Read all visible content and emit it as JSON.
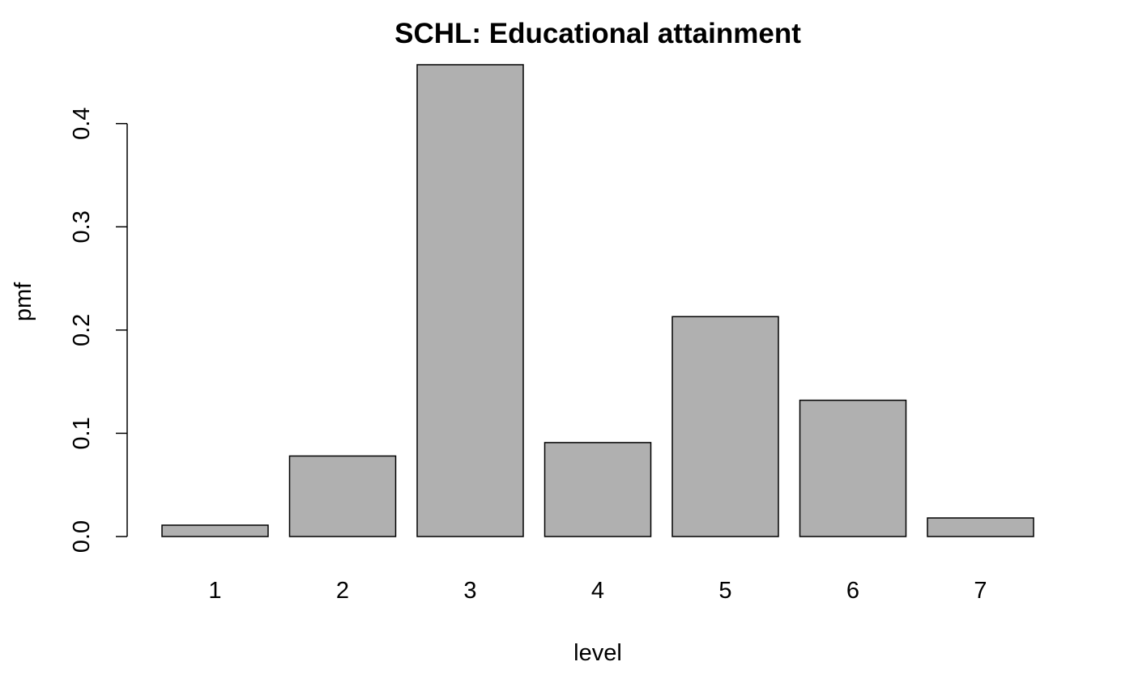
{
  "chart_data": {
    "type": "bar",
    "title": "SCHL: Educational attainment",
    "xlabel": "level",
    "ylabel": "pmf",
    "categories": [
      "1",
      "2",
      "3",
      "4",
      "5",
      "6",
      "7"
    ],
    "values": [
      0.011,
      0.078,
      0.457,
      0.091,
      0.213,
      0.132,
      0.018
    ],
    "ylim": [
      0,
      0.457
    ],
    "yticks": [
      "0.0",
      "0.1",
      "0.2",
      "0.3",
      "0.4"
    ],
    "bar_color": "#b0b0b0",
    "grid": false,
    "legend": "none"
  }
}
